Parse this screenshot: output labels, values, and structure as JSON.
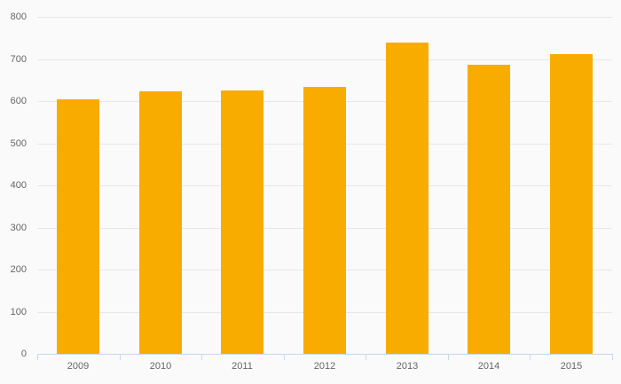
{
  "chart_data": {
    "type": "bar",
    "title": "",
    "xlabel": "",
    "ylabel": "",
    "categories": [
      "2009",
      "2010",
      "2011",
      "2012",
      "2013",
      "2014",
      "2015"
    ],
    "values": [
      605,
      623,
      626,
      634,
      738,
      686,
      712
    ],
    "ylim": [
      0,
      800
    ],
    "ytick_step": 100,
    "ytick_labels": [
      "0",
      "100",
      "200",
      "300",
      "400",
      "500",
      "600",
      "700",
      "800"
    ],
    "grid": "horizontal",
    "legend": "none",
    "colors": {
      "bar": "#f9ac00",
      "background": "#fafafa",
      "gridline": "#e7e7e7",
      "axis_line": "#ccd6eb",
      "label_text": "#666666"
    }
  }
}
